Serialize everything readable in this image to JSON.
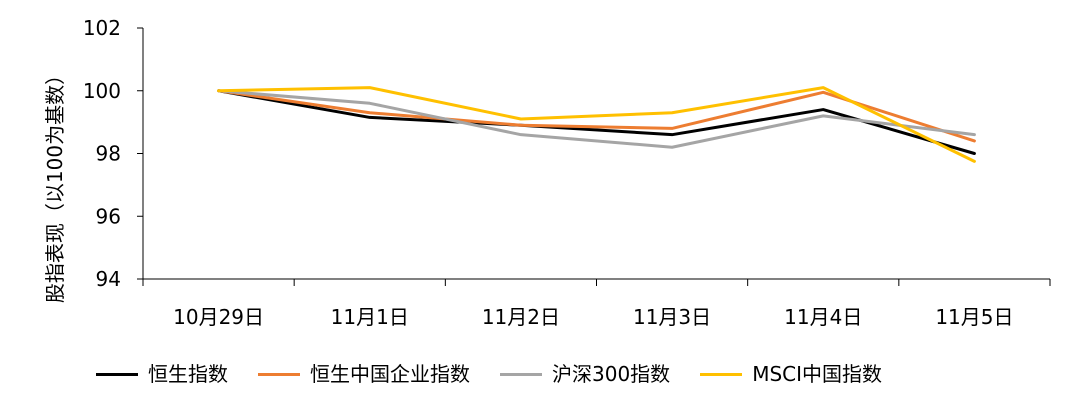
{
  "chart_data": {
    "type": "line",
    "title": "",
    "xlabel": "",
    "ylabel": "股指表现（以100为基数）",
    "categories": [
      "10月29日",
      "11月1日",
      "11月2日",
      "11月3日",
      "11月4日",
      "11月5日"
    ],
    "ylim": [
      94,
      102
    ],
    "yticks": [
      "94",
      "96",
      "98",
      "100",
      "102"
    ],
    "grid": false,
    "legend_position": "bottom",
    "series": [
      {
        "name": "恒生指数",
        "color": "#000000",
        "values": [
          100.0,
          99.15,
          98.9,
          98.6,
          99.4,
          98.0
        ]
      },
      {
        "name": "恒生中国企业指数",
        "color": "#ED7D31",
        "values": [
          100.0,
          99.3,
          98.9,
          98.8,
          99.95,
          98.4
        ]
      },
      {
        "name": "沪深300指数",
        "color": "#A5A5A5",
        "values": [
          100.0,
          99.6,
          98.6,
          98.2,
          99.2,
          98.6
        ]
      },
      {
        "name": "MSCI中国指数",
        "color": "#FFC000",
        "values": [
          100.0,
          100.1,
          99.1,
          99.3,
          100.1,
          97.75
        ]
      }
    ]
  }
}
